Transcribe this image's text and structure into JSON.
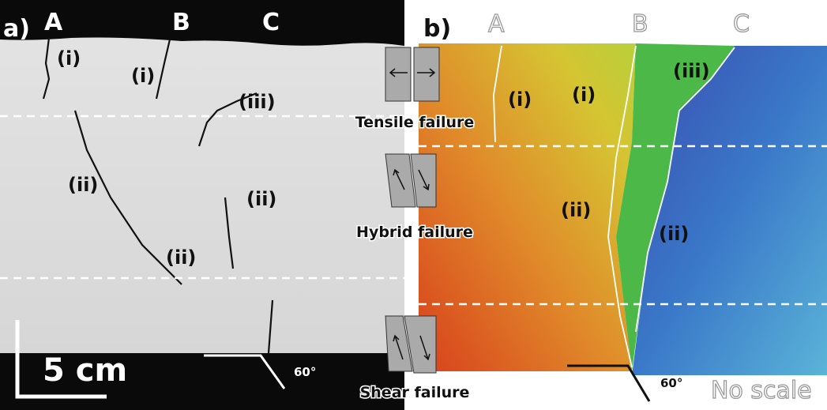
{
  "panel_a": {
    "label": "a)",
    "columns": [
      "A",
      "B",
      "C"
    ],
    "annotations": [
      "(i)",
      "(i)",
      "(iii)",
      "(ii)",
      "(ii)",
      "(ii)"
    ],
    "scale_bar": "5 cm",
    "angle": "60°"
  },
  "failure_modes": [
    "Tensile failure",
    "Hybrid failure",
    "Shear failure"
  ],
  "panel_b": {
    "label": "b)",
    "columns": [
      "A",
      "B",
      "C"
    ],
    "annotations": [
      "(i)",
      "(i)",
      "(iii)",
      "(ii)",
      "(ii)"
    ],
    "angle": "60°",
    "scale_note": "No scale"
  }
}
